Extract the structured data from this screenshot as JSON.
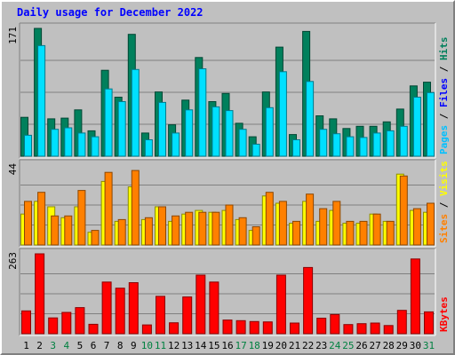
{
  "chart_data": {
    "type": "bar",
    "title": "Daily usage for December 2022",
    "title_color": "#0000ff",
    "background": "#c0c0c0",
    "days": [
      "1",
      "2",
      "3",
      "4",
      "5",
      "6",
      "7",
      "8",
      "9",
      "10",
      "11",
      "12",
      "13",
      "14",
      "15",
      "16",
      "17",
      "18",
      "19",
      "20",
      "21",
      "22",
      "23",
      "24",
      "25",
      "26",
      "27",
      "28",
      "29",
      "30",
      "31"
    ],
    "weekend_days": [
      "3",
      "4",
      "10",
      "11",
      "17",
      "18",
      "24",
      "25",
      "31"
    ],
    "weekday_label_color": "#000000",
    "weekend_label_color": "#008040",
    "panels": [
      {
        "id": "hits-files-pages",
        "scale_label": "171",
        "ymax": 171,
        "legend": [
          {
            "label": "Hits",
            "color": "#00805c"
          },
          {
            "label": "Files",
            "color": "#0000ff"
          },
          {
            "label": "Pages",
            "color": "#00c0ff"
          }
        ],
        "series": [
          {
            "name": "Hits",
            "color": "#00805c",
            "values": [
              52,
              171,
              50,
              51,
              62,
              34,
              115,
              79,
              163,
              31,
              86,
              42,
              75,
              132,
              73,
              84,
              44,
              26,
              86,
              146,
              29,
              167,
              54,
              50,
              37,
              40,
              40,
              46,
              63,
              94,
              99
            ]
          },
          {
            "name": "Files",
            "color": "#00e0ff",
            "values": [
              28,
              148,
              36,
              38,
              31,
              26,
              90,
              73,
              116,
              22,
              72,
              31,
              62,
              117,
              66,
              61,
              36,
              16,
              65,
              113,
              22,
              100,
              36,
              30,
              26,
              25,
              31,
              34,
              40,
              79,
              85
            ]
          },
          {
            "name": "Pages",
            "color": "#00c0ff",
            "values": [
              28,
              148,
              36,
              38,
              31,
              26,
              90,
              73,
              116,
              22,
              72,
              31,
              62,
              117,
              66,
              61,
              36,
              16,
              65,
              113,
              22,
              100,
              36,
              30,
              26,
              25,
              31,
              34,
              40,
              79,
              85
            ]
          }
        ]
      },
      {
        "id": "visits-sites",
        "scale_label": "44",
        "ymax": 44,
        "legend": [
          {
            "label": "Visits",
            "color": "#ffff00"
          },
          {
            "label": "Sites",
            "color": "#ff8000"
          }
        ],
        "series": [
          {
            "name": "Visits",
            "color": "#ffff00",
            "values": [
              17,
              24,
              21,
              15,
              21,
              7,
              35,
              13,
              32,
              14,
              21,
              13,
              17,
              19,
              18,
              19,
              14,
              8,
              27,
              23,
              12,
              24,
              13,
              19,
              12,
              12,
              17,
              13,
              39,
              19,
              18
            ]
          },
          {
            "name": "Sites",
            "color": "#ff8000",
            "values": [
              24,
              29,
              16,
              16,
              30,
              8,
              40,
              14,
              41,
              15,
              21,
              16,
              18,
              18,
              18,
              22,
              15,
              10,
              29,
              24,
              13,
              28,
              20,
              24,
              13,
              13,
              17,
              13,
              38,
              20,
              23
            ]
          }
        ]
      },
      {
        "id": "kbytes",
        "scale_label": "263",
        "ymax": 263,
        "legend": [
          {
            "label": "KBytes",
            "color": "#ff0000"
          }
        ],
        "series": [
          {
            "name": "KBytes",
            "color": "#ff0000",
            "values": [
              75,
              263,
              52,
              70,
              86,
              31,
              170,
              150,
              168,
              29,
              123,
              36,
              121,
              193,
              170,
              45,
              43,
              40,
              39,
              193,
              35,
              218,
              51,
              63,
              30,
              33,
              35,
              27,
              77,
              246,
              72
            ]
          }
        ]
      }
    ]
  }
}
